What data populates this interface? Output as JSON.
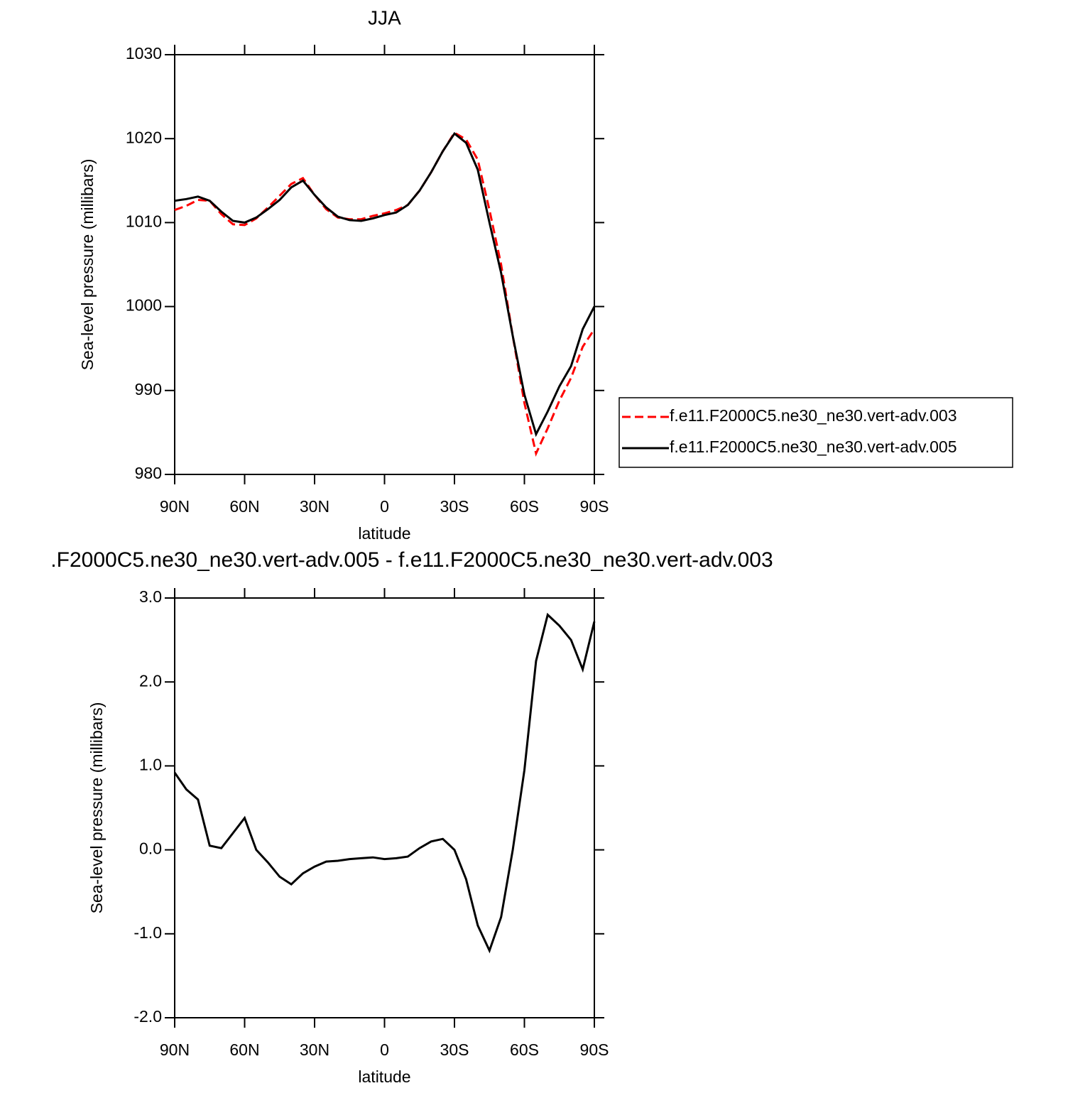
{
  "chart_data": [
    {
      "type": "line",
      "title": "JJA",
      "xlabel": "latitude",
      "ylabel": "Sea-level pressure (millibars)",
      "x": [
        90,
        85,
        80,
        75,
        70,
        65,
        60,
        55,
        50,
        45,
        40,
        35,
        30,
        25,
        20,
        15,
        10,
        5,
        0,
        -5,
        -10,
        -15,
        -20,
        -25,
        -30,
        -35,
        -40,
        -45,
        -50,
        -55,
        -60,
        -65,
        -70,
        -75,
        -80,
        -85,
        -90
      ],
      "xlim": [
        90,
        -90
      ],
      "xticks": [
        {
          "value": 90,
          "label": "90N"
        },
        {
          "value": 60,
          "label": "60N"
        },
        {
          "value": 30,
          "label": "30N"
        },
        0,
        {
          "value": -30,
          "label": "30S"
        },
        {
          "value": -60,
          "label": "60S"
        },
        {
          "value": -90,
          "label": "90S"
        }
      ],
      "ylim": [
        980,
        1030
      ],
      "yticks": [
        980,
        990,
        1000,
        1010,
        1020,
        1030
      ],
      "legend": "right",
      "grid": false,
      "series": [
        {
          "name": "f.e11.F2000C5.ne30_ne30.vert-adv.003",
          "color": "#ff0000",
          "linestyle": "dashed",
          "values": [
            1011.5,
            1012.0,
            1012.7,
            1012.6,
            1011.0,
            1009.8,
            1009.7,
            1010.5,
            1011.8,
            1013.2,
            1014.6,
            1015.3,
            1013.3,
            1011.6,
            1010.6,
            1010.4,
            1010.4,
            1010.8,
            1011.1,
            1011.5,
            1012.1,
            1013.8,
            1016.0,
            1018.5,
            1020.7,
            1019.9,
            1017.5,
            1011.5,
            1005.0,
            996.5,
            988.5,
            982.5,
            985.5,
            988.8,
            991.5,
            995.2,
            997.3
          ]
        },
        {
          "name": "f.e11.F2000C5.ne30_ne30.vert-adv.005",
          "color": "#000000",
          "linestyle": "solid",
          "values": [
            1012.6,
            1012.8,
            1013.1,
            1012.6,
            1011.3,
            1010.2,
            1010.0,
            1010.6,
            1011.6,
            1012.7,
            1014.2,
            1015.0,
            1013.3,
            1011.8,
            1010.7,
            1010.3,
            1010.2,
            1010.5,
            1010.9,
            1011.2,
            1012.1,
            1013.8,
            1016.0,
            1018.5,
            1020.6,
            1019.5,
            1016.3,
            1010.0,
            1004.0,
            996.5,
            989.5,
            984.8,
            987.5,
            990.5,
            992.9,
            997.3,
            1000.0
          ]
        }
      ]
    },
    {
      "type": "line",
      "title": ".F2000C5.ne30_ne30.vert-adv.005 - f.e11.F2000C5.ne30_ne30.vert-adv.003",
      "xlabel": "latitude",
      "ylabel": "Sea-level pressure (millibars)",
      "x": [
        90,
        85,
        80,
        75,
        70,
        65,
        60,
        55,
        50,
        45,
        40,
        35,
        30,
        25,
        20,
        15,
        10,
        5,
        0,
        -5,
        -10,
        -15,
        -20,
        -25,
        -30,
        -35,
        -40,
        -45,
        -50,
        -55,
        -60,
        -65,
        -70,
        -75,
        -80,
        -85,
        -90
      ],
      "xlim": [
        90,
        -90
      ],
      "xticks": [
        {
          "value": 90,
          "label": "90N"
        },
        {
          "value": 60,
          "label": "60N"
        },
        {
          "value": 30,
          "label": "30N"
        },
        0,
        {
          "value": -30,
          "label": "30S"
        },
        {
          "value": -60,
          "label": "60S"
        },
        {
          "value": -90,
          "label": "90S"
        }
      ],
      "ylim": [
        -2,
        3
      ],
      "yticks": [
        {
          "value": -2,
          "label": "-2.0"
        },
        {
          "value": -1,
          "label": "-1.0"
        },
        {
          "value": 0,
          "label": "0.0"
        },
        {
          "value": 1,
          "label": "1.0"
        },
        {
          "value": 2,
          "label": "2.0"
        },
        {
          "value": 3,
          "label": "3.0"
        }
      ],
      "grid": false,
      "series": [
        {
          "color": "#000000",
          "linestyle": "solid",
          "values": [
            0.92,
            0.72,
            0.6,
            0.05,
            0.02,
            0.2,
            0.38,
            0.0,
            -0.15,
            -0.32,
            -0.41,
            -0.28,
            -0.2,
            -0.14,
            -0.13,
            -0.11,
            -0.1,
            -0.09,
            -0.11,
            -0.1,
            -0.08,
            0.02,
            0.1,
            0.13,
            0.0,
            -0.35,
            -0.9,
            -1.2,
            -0.8,
            0.0,
            0.95,
            2.25,
            2.8,
            2.67,
            2.5,
            2.15,
            2.72
          ]
        }
      ]
    }
  ]
}
